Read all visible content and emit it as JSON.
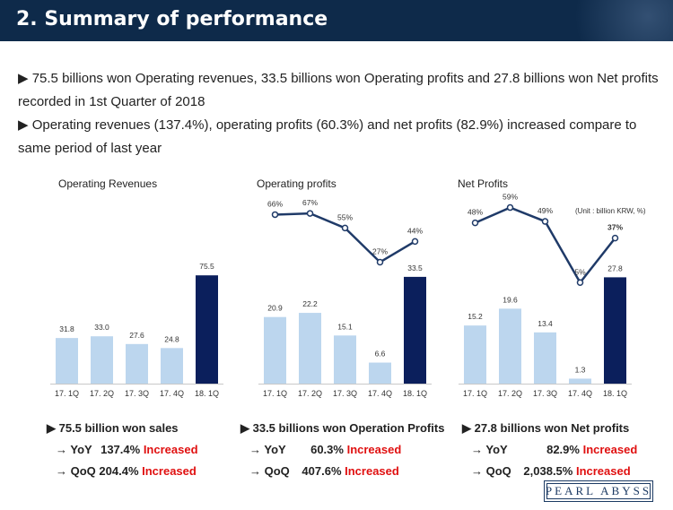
{
  "header": {
    "title": "2. Summary of performance"
  },
  "bullets": [
    "▶ 75.5 billions won Operating revenues, 33.5 billions won Operating profits and 27.8 billions won Net profits recorded in 1st Quarter of 2018",
    "▶ Operating revenues (137.4%), operating profits (60.3%) and net profits (82.9%) increased compare to same period of last year"
  ],
  "unit_note": "(Unit : billion KRW, %)",
  "colors": {
    "light_bar": "#bcd6ee",
    "dark_bar": "#0b1f5c",
    "line": "#1f3a68",
    "red": "#e01010",
    "header": "#0e2a4a"
  },
  "chart_data": [
    {
      "type": "bar",
      "title": "Operating Revenues",
      "categories": [
        "17. 1Q",
        "17. 2Q",
        "17. 3Q",
        "17. 4Q",
        "18. 1Q"
      ],
      "values": [
        31.8,
        33.0,
        27.6,
        24.8,
        75.5
      ],
      "value_labels": [
        "31.8",
        "33.0",
        "27.6",
        "24.8",
        "75.5"
      ],
      "ylim": [
        0,
        80
      ]
    },
    {
      "type": "bar",
      "title": "Operating profits",
      "categories": [
        "17. 1Q",
        "17. 2Q",
        "17. 3Q",
        "17. 4Q",
        "18. 1Q"
      ],
      "values": [
        20.9,
        22.2,
        15.1,
        6.6,
        33.5
      ],
      "value_labels": [
        "20.9",
        "22.2",
        "15.1",
        "6.6",
        "33.5"
      ],
      "ylim": [
        0,
        36
      ],
      "margin_line": {
        "values": [
          66,
          67,
          55,
          27,
          44
        ],
        "labels": [
          "66%",
          "67%",
          "55%",
          "27%",
          "44%"
        ],
        "ylim": [
          20,
          70
        ]
      }
    },
    {
      "type": "bar",
      "title": "Net Profits",
      "categories": [
        "17. 1Q",
        "17. 2Q",
        "17. 3Q",
        "17. 4Q",
        "18. 1Q"
      ],
      "values": [
        15.2,
        19.6,
        13.4,
        1.3,
        27.8
      ],
      "value_labels": [
        "15.2",
        "19.6",
        "13.4",
        "1.3",
        "27.8"
      ],
      "ylim": [
        0,
        30
      ],
      "margin_line": {
        "values": [
          48,
          59,
          49,
          5,
          37
        ],
        "labels": [
          "48%",
          "59%",
          "49%",
          "5%",
          "37%"
        ],
        "ylim": [
          0,
          60
        ]
      }
    }
  ],
  "summaries": [
    {
      "headline": "▶ 75.5 billion won sales",
      "yoy_label": "→ YoY",
      "yoy_value": "137.4%",
      "yoy_status": "Increased",
      "qoq_label": "→ QoQ",
      "qoq_value": "204.4%",
      "qoq_status": "Increased"
    },
    {
      "headline": "▶ 33.5 billions won Operation Profits",
      "yoy_label": "→ YoY",
      "yoy_value": "60.3%",
      "yoy_status": "Increased",
      "qoq_label": "→ QoQ",
      "qoq_value": "407.6%",
      "qoq_status": "Increased"
    },
    {
      "headline": "▶ 27.8 billions won Net profits",
      "yoy_label": "→ YoY",
      "yoy_value": "82.9%",
      "yoy_status": "Increased",
      "qoq_label": "→ QoQ",
      "qoq_value": "2,038.5%",
      "qoq_status": "Increased"
    }
  ],
  "logo": {
    "text": "PEARL ABYSS"
  }
}
